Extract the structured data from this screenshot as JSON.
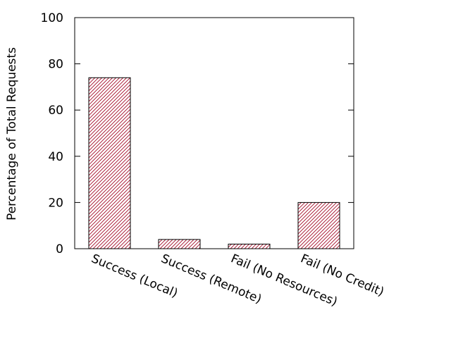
{
  "chart_data": {
    "type": "bar",
    "title": "",
    "xlabel": "",
    "ylabel": "Percentage of Total Requests",
    "ylim": [
      0,
      100
    ],
    "yticks": [
      0,
      20,
      40,
      60,
      80,
      100
    ],
    "grid": false,
    "legend": "none",
    "categories": [
      "Success (Local)",
      "Success (Remote)",
      "Fail (No Resources)",
      "Fail (No Credit)"
    ],
    "values": [
      74,
      4,
      2,
      20
    ],
    "colors": {
      "bar_hatch": "#a0001e",
      "bar_fill": "#ffffff",
      "axis": "#000000"
    }
  }
}
